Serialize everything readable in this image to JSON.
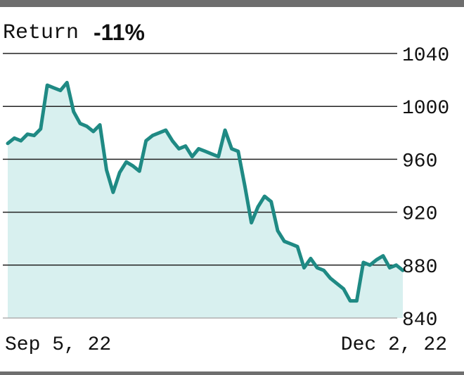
{
  "header": {
    "label": "Return",
    "value": "-11%"
  },
  "chart_data": {
    "type": "area",
    "title": "Return -11%",
    "xlabel": "",
    "ylabel": "",
    "x_tick_labels": [
      "Sep 5, 22",
      "Dec 2, 22"
    ],
    "y_ticks": [
      840,
      880,
      920,
      960,
      1000,
      1040
    ],
    "ylim": [
      840,
      1040
    ],
    "grid": "horizontal",
    "colors": {
      "line": "#1f8a84",
      "fill": "#d8f0ef",
      "grid": "#222222"
    },
    "series": [
      {
        "values": [
          972,
          976,
          974,
          979,
          978,
          983,
          1016,
          1014,
          1012,
          1018,
          996,
          987,
          985,
          981,
          986,
          952,
          935,
          950,
          958,
          955,
          951,
          974,
          978,
          980,
          982,
          974,
          968,
          970,
          962,
          968,
          966,
          964,
          962,
          982,
          968,
          966,
          940,
          912,
          924,
          932,
          928,
          906,
          898,
          896,
          894,
          878,
          885,
          878,
          876,
          870,
          866,
          862,
          853,
          853,
          882,
          880,
          884,
          887,
          878,
          880,
          876
        ]
      }
    ]
  }
}
